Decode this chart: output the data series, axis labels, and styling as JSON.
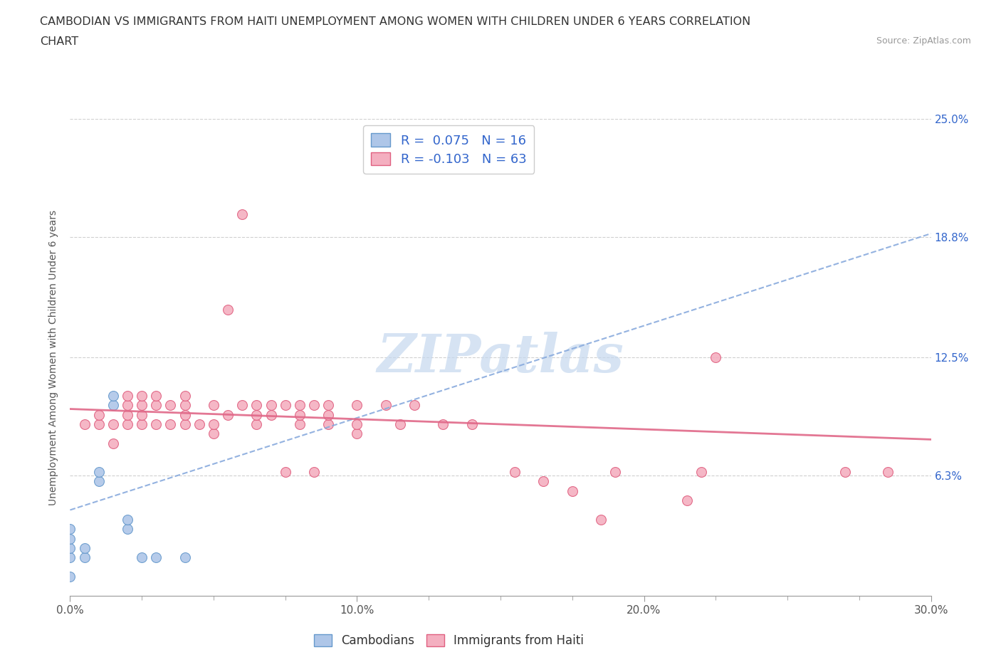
{
  "title_line1": "CAMBODIAN VS IMMIGRANTS FROM HAITI UNEMPLOYMENT AMONG WOMEN WITH CHILDREN UNDER 6 YEARS CORRELATION",
  "title_line2": "CHART",
  "source": "Source: ZipAtlas.com",
  "ylabel": "Unemployment Among Women with Children Under 6 years",
  "xmin": 0.0,
  "xmax": 0.3,
  "ymin": 0.0,
  "ymax": 0.25,
  "yticks": [
    0.063,
    0.125,
    0.188,
    0.25
  ],
  "ytick_labels": [
    "6.3%",
    "12.5%",
    "18.8%",
    "25.0%"
  ],
  "xticks": [
    0.0,
    0.1,
    0.2,
    0.3
  ],
  "xtick_labels": [
    "0.0%",
    "10.0%",
    "20.0%",
    "30.0%"
  ],
  "grid_color": "#d0d0d0",
  "background_color": "#ffffff",
  "cambodian_color": "#aec6e8",
  "haiti_color": "#f4afc0",
  "cambodian_edge_color": "#6699cc",
  "haiti_edge_color": "#e06080",
  "cambodian_line_color": "#88aadd",
  "haiti_line_color": "#e06888",
  "watermark": "ZIPatlas",
  "legend_R_cambodian": "R =  0.075",
  "legend_N_cambodian": "N = 16",
  "legend_R_haiti": "R = -0.103",
  "legend_N_haiti": "N = 63",
  "cambodian_scatter_x": [
    0.0,
    0.0,
    0.0,
    0.0,
    0.0,
    0.005,
    0.005,
    0.01,
    0.01,
    0.015,
    0.015,
    0.02,
    0.02,
    0.025,
    0.03,
    0.04
  ],
  "cambodian_scatter_y": [
    0.01,
    0.02,
    0.025,
    0.03,
    0.035,
    0.02,
    0.025,
    0.06,
    0.065,
    0.1,
    0.105,
    0.035,
    0.04,
    0.02,
    0.02,
    0.02
  ],
  "haiti_scatter_x": [
    0.005,
    0.01,
    0.01,
    0.015,
    0.015,
    0.02,
    0.02,
    0.02,
    0.02,
    0.025,
    0.025,
    0.025,
    0.025,
    0.03,
    0.03,
    0.03,
    0.035,
    0.035,
    0.04,
    0.04,
    0.04,
    0.04,
    0.045,
    0.05,
    0.05,
    0.05,
    0.055,
    0.055,
    0.06,
    0.06,
    0.065,
    0.065,
    0.065,
    0.07,
    0.07,
    0.075,
    0.075,
    0.08,
    0.08,
    0.08,
    0.085,
    0.085,
    0.09,
    0.09,
    0.09,
    0.1,
    0.1,
    0.1,
    0.11,
    0.115,
    0.12,
    0.13,
    0.14,
    0.155,
    0.165,
    0.175,
    0.185,
    0.19,
    0.215,
    0.22,
    0.225,
    0.27,
    0.285
  ],
  "haiti_scatter_y": [
    0.09,
    0.09,
    0.095,
    0.08,
    0.09,
    0.09,
    0.095,
    0.1,
    0.105,
    0.09,
    0.095,
    0.1,
    0.105,
    0.09,
    0.1,
    0.105,
    0.09,
    0.1,
    0.09,
    0.095,
    0.1,
    0.105,
    0.09,
    0.085,
    0.09,
    0.1,
    0.095,
    0.15,
    0.2,
    0.1,
    0.09,
    0.095,
    0.1,
    0.095,
    0.1,
    0.065,
    0.1,
    0.09,
    0.095,
    0.1,
    0.065,
    0.1,
    0.09,
    0.095,
    0.1,
    0.085,
    0.09,
    0.1,
    0.1,
    0.09,
    0.1,
    0.09,
    0.09,
    0.065,
    0.06,
    0.055,
    0.04,
    0.065,
    0.05,
    0.065,
    0.125,
    0.065,
    0.065
  ],
  "camb_trend_x0": 0.0,
  "camb_trend_y0": 0.045,
  "camb_trend_x1": 0.3,
  "camb_trend_y1": 0.19,
  "haiti_trend_x0": 0.0,
  "haiti_trend_y0": 0.098,
  "haiti_trend_x1": 0.3,
  "haiti_trend_y1": 0.082
}
